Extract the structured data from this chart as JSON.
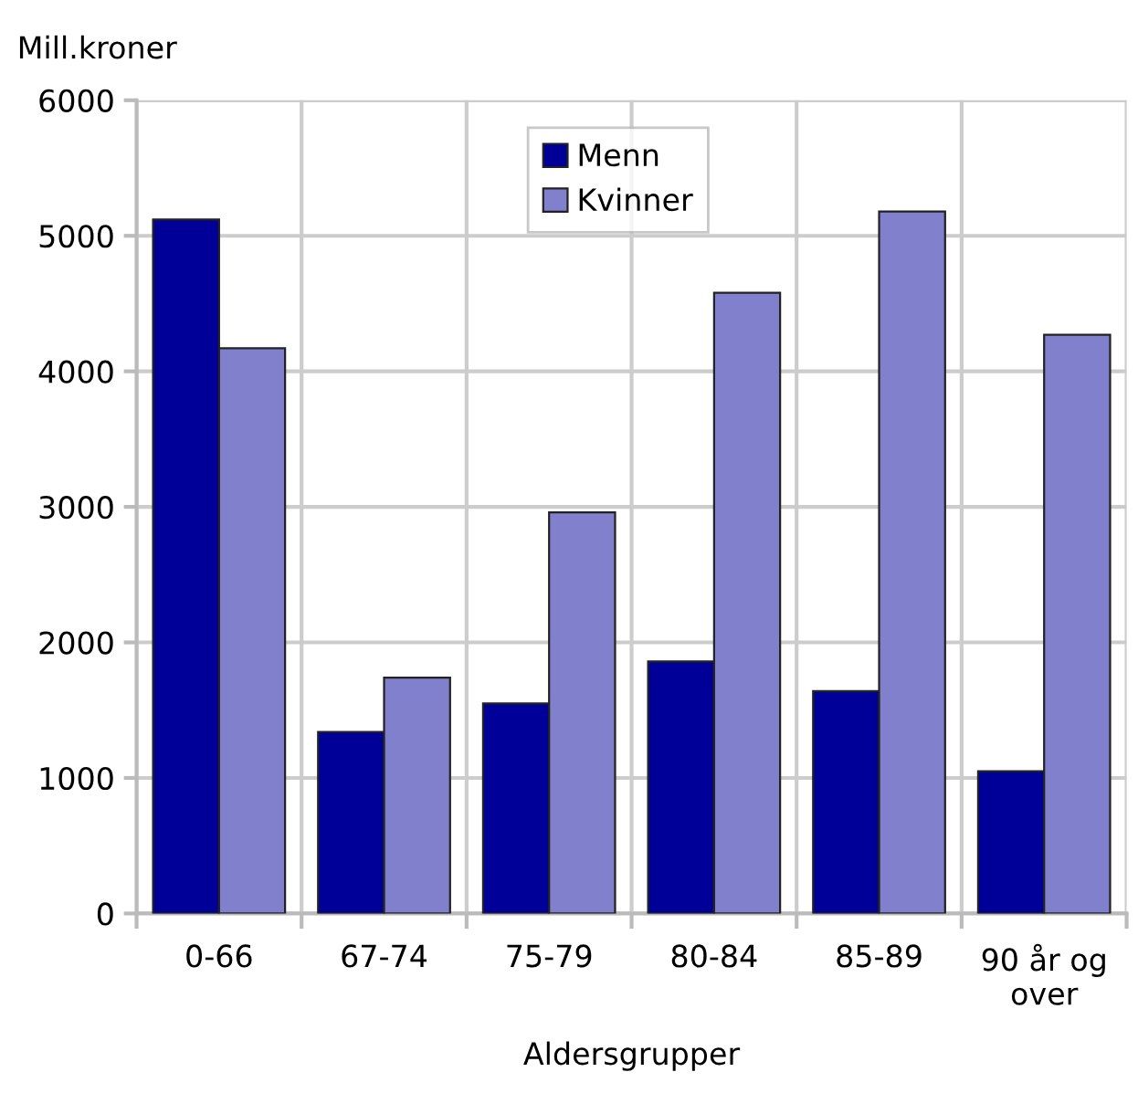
{
  "chart_data": {
    "type": "bar",
    "ylabel": "Mill.kroner",
    "xlabel": "Aldersgrupper",
    "categories": [
      "0-66",
      "67-74",
      "75-79",
      "80-84",
      "85-89",
      "90 år og over"
    ],
    "series": [
      {
        "name": "Menn",
        "color": "#000099",
        "values": [
          5120,
          1340,
          1550,
          1860,
          1640,
          1050
        ]
      },
      {
        "name": "Kvinner",
        "color": "#8080cc",
        "values": [
          4170,
          1740,
          2960,
          4580,
          5180,
          4270
        ]
      }
    ],
    "ylim": [
      0,
      6000
    ],
    "yticks": [
      0,
      1000,
      2000,
      3000,
      4000,
      5000,
      6000
    ],
    "grid": true,
    "legend": "top"
  }
}
